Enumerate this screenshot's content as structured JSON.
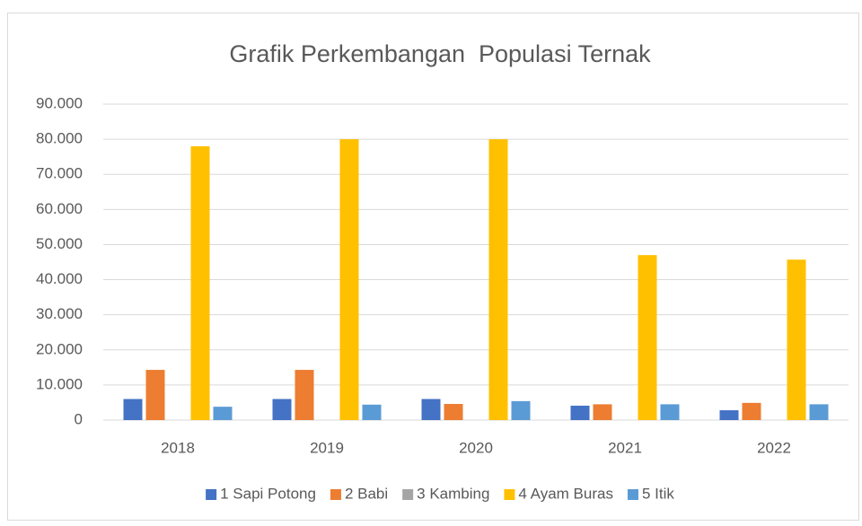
{
  "chart_data": {
    "type": "bar",
    "title": "Grafik Perkembangan  Populasi Ternak",
    "categories": [
      "2018",
      "2019",
      "2020",
      "2021",
      "2022"
    ],
    "series": [
      {
        "name": "1 Sapi Potong",
        "color": "#4472c4",
        "values": [
          6000,
          6000,
          6000,
          4100,
          2800
        ]
      },
      {
        "name": "2 Babi",
        "color": "#ed7d31",
        "values": [
          14300,
          14300,
          4600,
          4500,
          4900
        ]
      },
      {
        "name": "3 Kambing",
        "color": "#a5a5a5",
        "values": [
          0,
          0,
          0,
          0,
          0
        ]
      },
      {
        "name": "4 Ayam Buras",
        "color": "#ffc000",
        "values": [
          78000,
          80000,
          80000,
          47000,
          45700
        ]
      },
      {
        "name": "5 Itik",
        "color": "#5b9bd5",
        "values": [
          3800,
          4400,
          5400,
          4500,
          4500
        ]
      }
    ],
    "ylim": [
      0,
      90000
    ],
    "yticks": [
      0,
      {
        "value": 10000,
        "label": "10.000"
      },
      {
        "value": 20000,
        "label": "20.000"
      },
      {
        "value": 30000,
        "label": "30.000"
      },
      {
        "value": 40000,
        "label": "40.000"
      },
      {
        "value": 50000,
        "label": "50.000"
      },
      {
        "value": 60000,
        "label": "60.000"
      },
      {
        "value": 70000,
        "label": "70.000"
      },
      {
        "value": 80000,
        "label": "80.000"
      },
      {
        "value": 90000,
        "label": "90.000"
      }
    ],
    "grid": true,
    "legend": "bottom"
  }
}
